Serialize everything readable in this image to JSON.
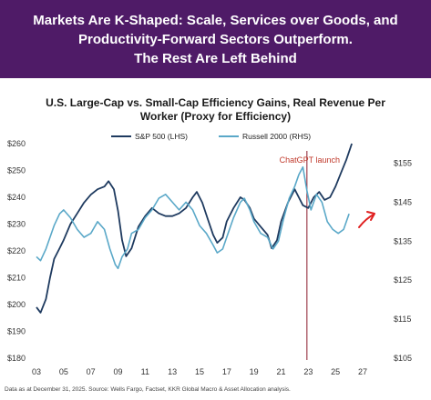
{
  "banner": {
    "line1": "Markets Are K-Shaped: Scale, Services over Goods, and",
    "line2": "Productivity-Forward Sectors Outperform.",
    "line3": "The Rest Are Left Behind"
  },
  "footnote": "Data as at December 31, 2025. Source: Wells Fargo, Factset, KKR Global Macro & Asset Allocation analysis.",
  "colors": {
    "banner": "#4f1b67",
    "sp500": "#1e3a5f",
    "russell": "#5aa8c8",
    "marker": "#8b1a2b",
    "arrow": "#e02020"
  },
  "chart_data": {
    "type": "line",
    "title_line1": "U.S. Large-Cap vs. Small-Cap Efficiency Gains, Real Revenue Per",
    "title_line2": "Worker (Proxy for Efficiency)",
    "x_ticks": [
      "03",
      "05",
      "07",
      "09",
      "11",
      "13",
      "15",
      "17",
      "19",
      "21",
      "23",
      "25",
      "27"
    ],
    "x_range": [
      2003,
      2027
    ],
    "y_left_ticks": [
      "$180",
      "$190",
      "$200",
      "$210",
      "$220",
      "$230",
      "$240",
      "$250",
      "$260"
    ],
    "y_left_range": [
      180,
      260
    ],
    "y_right_ticks": [
      "$105",
      "$115",
      "$125",
      "$135",
      "$145",
      "$155"
    ],
    "y_right_range": [
      105,
      160
    ],
    "annotation": "ChatGPT launch",
    "annotation_x": 2022.9,
    "series": [
      {
        "name": "S&P 500 (LHS)",
        "axis": "left",
        "points": [
          [
            2003.0,
            199
          ],
          [
            2003.3,
            197
          ],
          [
            2003.7,
            202
          ],
          [
            2004.0,
            210
          ],
          [
            2004.3,
            217
          ],
          [
            2004.7,
            221
          ],
          [
            2005.0,
            224
          ],
          [
            2005.5,
            230
          ],
          [
            2006.0,
            234
          ],
          [
            2006.5,
            238
          ],
          [
            2007.0,
            241
          ],
          [
            2007.5,
            243
          ],
          [
            2008.0,
            244
          ],
          [
            2008.3,
            246
          ],
          [
            2008.7,
            243
          ],
          [
            2009.0,
            235
          ],
          [
            2009.3,
            224
          ],
          [
            2009.6,
            218
          ],
          [
            2010.0,
            221
          ],
          [
            2010.5,
            229
          ],
          [
            2011.0,
            233
          ],
          [
            2011.5,
            236
          ],
          [
            2012.0,
            234
          ],
          [
            2012.5,
            233
          ],
          [
            2013.0,
            233
          ],
          [
            2013.5,
            234
          ],
          [
            2014.0,
            236
          ],
          [
            2014.5,
            240
          ],
          [
            2014.8,
            242
          ],
          [
            2015.2,
            238
          ],
          [
            2015.6,
            232
          ],
          [
            2016.0,
            226
          ],
          [
            2016.3,
            223
          ],
          [
            2016.7,
            225
          ],
          [
            2017.0,
            231
          ],
          [
            2017.5,
            236
          ],
          [
            2018.0,
            240
          ],
          [
            2018.3,
            239
          ],
          [
            2018.7,
            236
          ],
          [
            2019.0,
            232
          ],
          [
            2019.5,
            229
          ],
          [
            2020.0,
            226
          ],
          [
            2020.3,
            221
          ],
          [
            2020.7,
            224
          ],
          [
            2021.0,
            231
          ],
          [
            2021.5,
            238
          ],
          [
            2022.0,
            243
          ],
          [
            2022.3,
            240
          ],
          [
            2022.6,
            237
          ],
          [
            2023.0,
            236
          ],
          [
            2023.4,
            240
          ],
          [
            2023.8,
            242
          ],
          [
            2024.2,
            239
          ],
          [
            2024.6,
            240
          ],
          [
            2025.0,
            244
          ],
          [
            2025.4,
            249
          ],
          [
            2025.8,
            254
          ],
          [
            2026.2,
            260
          ]
        ]
      },
      {
        "name": "Russell 2000 (RHS)",
        "axis": "right",
        "points": [
          [
            2003.0,
            131
          ],
          [
            2003.3,
            130
          ],
          [
            2003.7,
            133
          ],
          [
            2004.0,
            136
          ],
          [
            2004.3,
            139
          ],
          [
            2004.7,
            142
          ],
          [
            2005.0,
            143
          ],
          [
            2005.5,
            141
          ],
          [
            2006.0,
            138
          ],
          [
            2006.5,
            136
          ],
          [
            2007.0,
            137
          ],
          [
            2007.5,
            140
          ],
          [
            2008.0,
            138
          ],
          [
            2008.4,
            133
          ],
          [
            2008.8,
            129
          ],
          [
            2009.0,
            128
          ],
          [
            2009.3,
            131
          ],
          [
            2009.7,
            133
          ],
          [
            2010.0,
            137
          ],
          [
            2010.5,
            138
          ],
          [
            2011.0,
            141
          ],
          [
            2011.5,
            143
          ],
          [
            2012.0,
            146
          ],
          [
            2012.5,
            147
          ],
          [
            2013.0,
            145
          ],
          [
            2013.5,
            143
          ],
          [
            2014.0,
            145
          ],
          [
            2014.5,
            143
          ],
          [
            2015.0,
            139
          ],
          [
            2015.5,
            137
          ],
          [
            2016.0,
            134
          ],
          [
            2016.3,
            132
          ],
          [
            2016.7,
            133
          ],
          [
            2017.0,
            136
          ],
          [
            2017.5,
            141
          ],
          [
            2018.0,
            145
          ],
          [
            2018.3,
            146
          ],
          [
            2018.7,
            143
          ],
          [
            2019.0,
            140
          ],
          [
            2019.5,
            137
          ],
          [
            2020.0,
            136
          ],
          [
            2020.4,
            133
          ],
          [
            2020.8,
            135
          ],
          [
            2021.2,
            141
          ],
          [
            2021.6,
            146
          ],
          [
            2022.0,
            149
          ],
          [
            2022.3,
            152
          ],
          [
            2022.6,
            154
          ],
          [
            2022.9,
            148
          ],
          [
            2023.2,
            143
          ],
          [
            2023.6,
            147
          ],
          [
            2024.0,
            145
          ],
          [
            2024.4,
            140
          ],
          [
            2024.8,
            138
          ],
          [
            2025.2,
            137
          ],
          [
            2025.6,
            138
          ],
          [
            2026.0,
            142
          ]
        ]
      }
    ]
  }
}
